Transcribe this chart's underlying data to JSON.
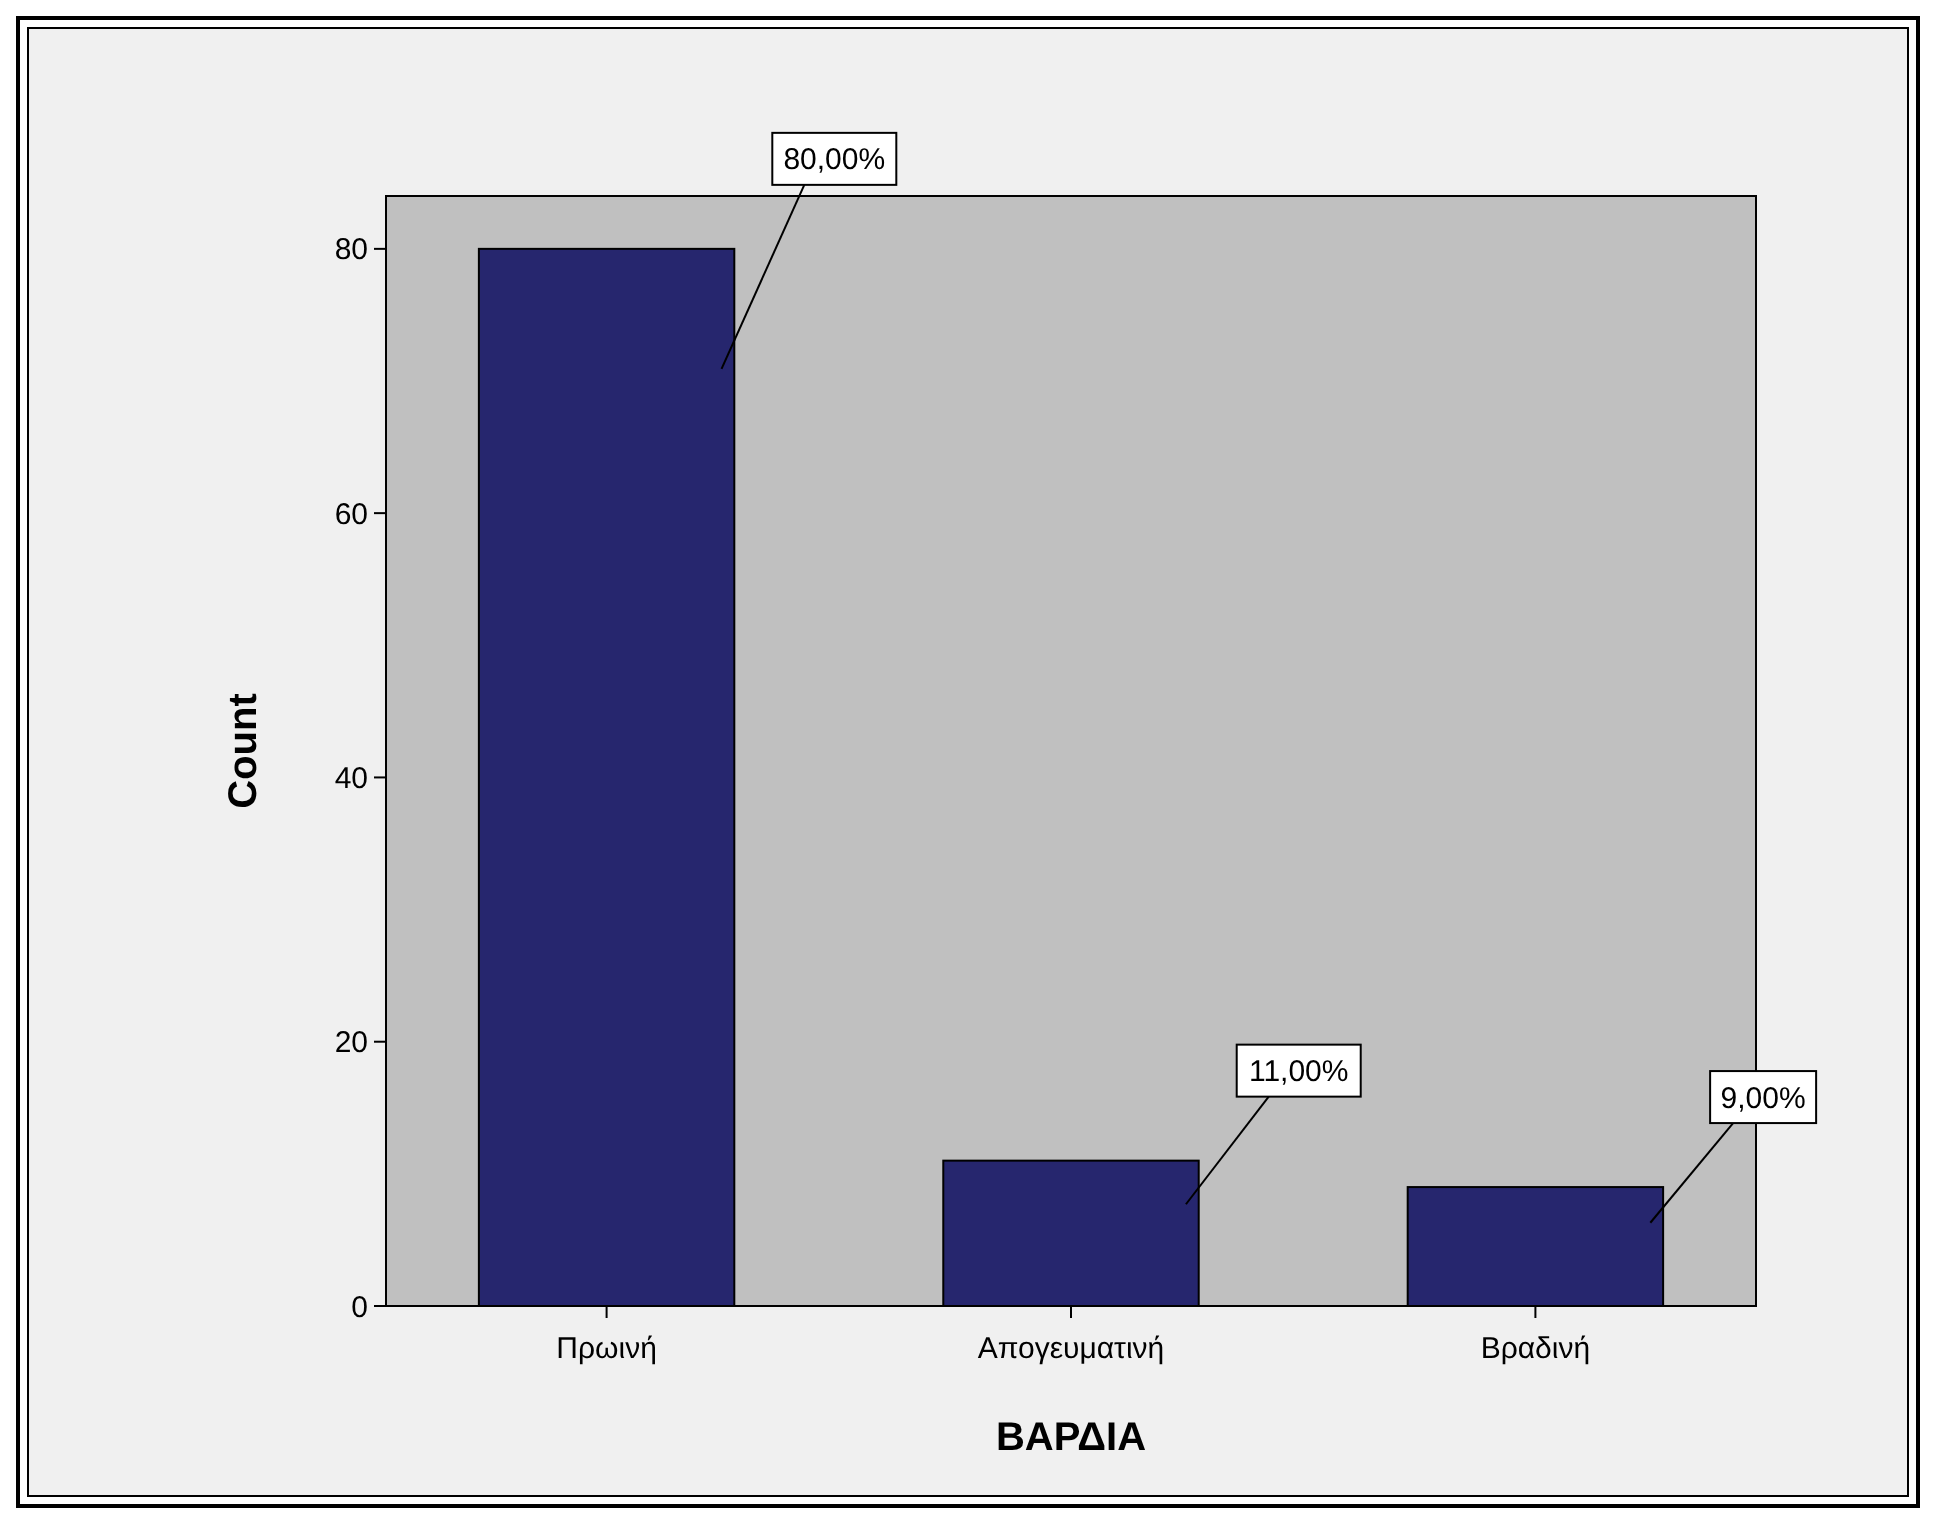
{
  "chart_data": {
    "type": "bar",
    "xlabel": "ΒΑΡΔΙΑ",
    "ylabel": "Count",
    "categories": [
      "Πρωινή",
      "Απογευματινή",
      "Βραδινή"
    ],
    "values": [
      80,
      11,
      9
    ],
    "color": "#26266e",
    "value_labels": [
      "80,00%",
      "11,00%",
      "9,00%"
    ],
    "ylim": [
      0,
      84
    ],
    "yticks": [
      0,
      20,
      40,
      60,
      80
    ]
  }
}
